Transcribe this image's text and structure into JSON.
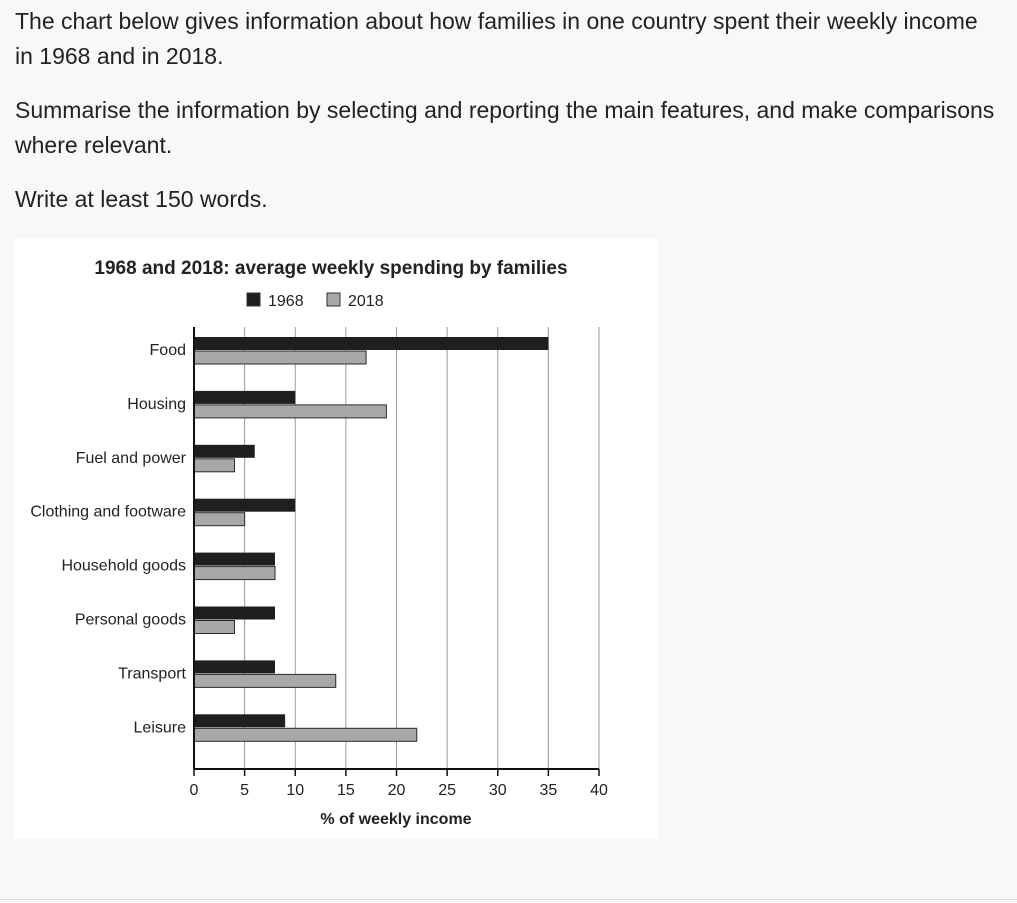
{
  "prompt": {
    "line1": "The chart below gives information about how families in one country spent their weekly income in 1968 and in 2018.",
    "line2": "Summarise the information by selecting and reporting the main features, and make comparisons where relevant.",
    "line3": "Write at least 150 words."
  },
  "chart_data": {
    "type": "bar",
    "orientation": "horizontal",
    "title": "1968 and 2018: average weekly spending by families",
    "categories": [
      "Food",
      "Housing",
      "Fuel and power",
      "Clothing and footware",
      "Household goods",
      "Personal goods",
      "Transport",
      "Leisure"
    ],
    "series": [
      {
        "name": "1968",
        "values": [
          35,
          10,
          6,
          10,
          8,
          8,
          8,
          9
        ],
        "color": "#1f1f1f"
      },
      {
        "name": "2018",
        "values": [
          17,
          19,
          4,
          5,
          8,
          4,
          14,
          22
        ],
        "color": "#a8a8a8"
      }
    ],
    "xlabel": "% of weekly income",
    "ylabel": "",
    "xlim": [
      0,
      40
    ],
    "xticks": [
      0,
      5,
      10,
      15,
      20,
      25,
      30,
      35,
      40
    ],
    "grid": true,
    "legend_position": "top-center"
  },
  "colors": {
    "page_background": "#f8f8f8",
    "chart_background": "#ffffff",
    "bar_1968": "#1f1f1f",
    "bar_2018": "#a8a8a8",
    "grid": "#9a9a9a"
  }
}
